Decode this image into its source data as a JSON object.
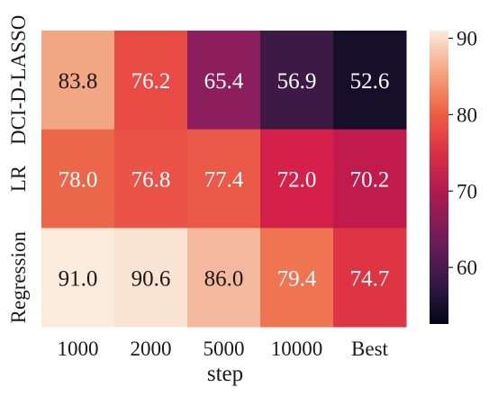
{
  "chart_data": {
    "type": "heatmap",
    "xlabel": "step",
    "ylabel": "",
    "x_categories": [
      "1000",
      "2000",
      "5000",
      "10000",
      "Best"
    ],
    "y_categories": [
      "DCI-D-LASSO",
      "LR",
      "Regression"
    ],
    "values": [
      [
        83.8,
        76.2,
        65.4,
        56.9,
        52.6
      ],
      [
        78.0,
        76.8,
        77.4,
        72.0,
        70.2
      ],
      [
        91.0,
        90.6,
        86.0,
        79.4,
        74.7
      ]
    ],
    "cell_labels": [
      [
        "83.8",
        "76.2",
        "65.4",
        "56.9",
        "52.6"
      ],
      [
        "78.0",
        "76.8",
        "77.4",
        "72.0",
        "70.2"
      ],
      [
        "91.0",
        "90.6",
        "86.0",
        "79.4",
        "74.7"
      ]
    ],
    "colorbar": {
      "range": [
        52.6,
        91.0
      ],
      "ticks": [
        "60",
        "70",
        "80",
        "90"
      ],
      "colormap": "rocket"
    },
    "colors": {
      "cells": [
        [
          "#f2a683",
          "#e84a44",
          "#8c1e5d",
          "#3d1a45",
          "#160f2a"
        ],
        [
          "#ec6749",
          "#ea5346",
          "#eb5a48",
          "#d4204a",
          "#c11a4d"
        ],
        [
          "#faebdd",
          "#f9e4d4",
          "#f4b89e",
          "#ef7452",
          "#de3444"
        ]
      ],
      "text_dark": "#1a1a1a",
      "text_light": "#ffffff"
    }
  }
}
